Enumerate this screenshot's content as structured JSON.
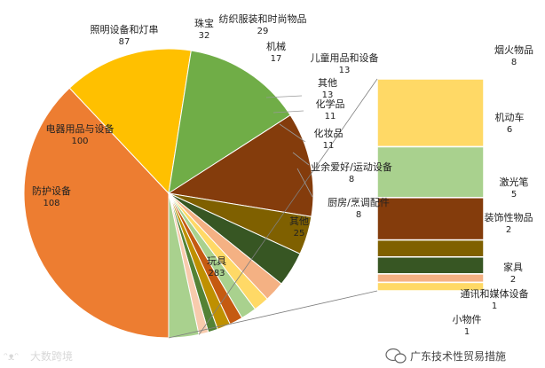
{
  "chart_data": {
    "type": "pie",
    "pie": {
      "slices": [
        {
          "label": "玩具",
          "value": 283,
          "color": "#ed7d31"
        },
        {
          "label": "防护设备",
          "value": 108,
          "color": "#ffc000"
        },
        {
          "label": "电器用品与设备",
          "value": 100,
          "color": "#70ad47"
        },
        {
          "label": "照明设备和灯串",
          "value": 87,
          "color": "#843c0c"
        },
        {
          "label": "珠宝",
          "value": 32,
          "color": "#7f6000"
        },
        {
          "label": "纺织服装和时尚物品",
          "value": 29,
          "color": "#375623"
        },
        {
          "label": "机械",
          "value": 17,
          "color": "#f4b183"
        },
        {
          "label": "儿童用品和设备",
          "value": 13,
          "color": "#ffd966"
        },
        {
          "label": "其他",
          "value": 13,
          "color": "#a9d18e"
        },
        {
          "label": "化学品",
          "value": 11,
          "color": "#c55a11"
        },
        {
          "label": "化妆品",
          "value": 11,
          "color": "#bf9000"
        },
        {
          "label": "业余爱好/运动设备",
          "value": 8,
          "color": "#548235"
        },
        {
          "label": "厨房/烹调配件",
          "value": 8,
          "color": "#f8cbad"
        },
        {
          "label": "其他",
          "value": 25,
          "color": "#a9d18e"
        }
      ]
    },
    "breakdown": {
      "parent_label": "其他",
      "parent_value": 25,
      "segments": [
        {
          "label": "烟火物品",
          "value": 8,
          "color": "#ffd966"
        },
        {
          "label": "机动车",
          "value": 6,
          "color": "#a9d18e"
        },
        {
          "label": "激光笔",
          "value": 5,
          "color": "#843c0c"
        },
        {
          "label": "装饰性物品",
          "value": 2,
          "color": "#7f6000"
        },
        {
          "label": "家具",
          "value": 2,
          "color": "#375623"
        },
        {
          "label": "通讯和媒体设备",
          "value": 1,
          "color": "#f4b183"
        },
        {
          "label": "小物件",
          "value": 1,
          "color": "#ffd966"
        }
      ]
    }
  },
  "watermark": {
    "left": "大数跨境",
    "right": "广东技术性贸易措施"
  }
}
